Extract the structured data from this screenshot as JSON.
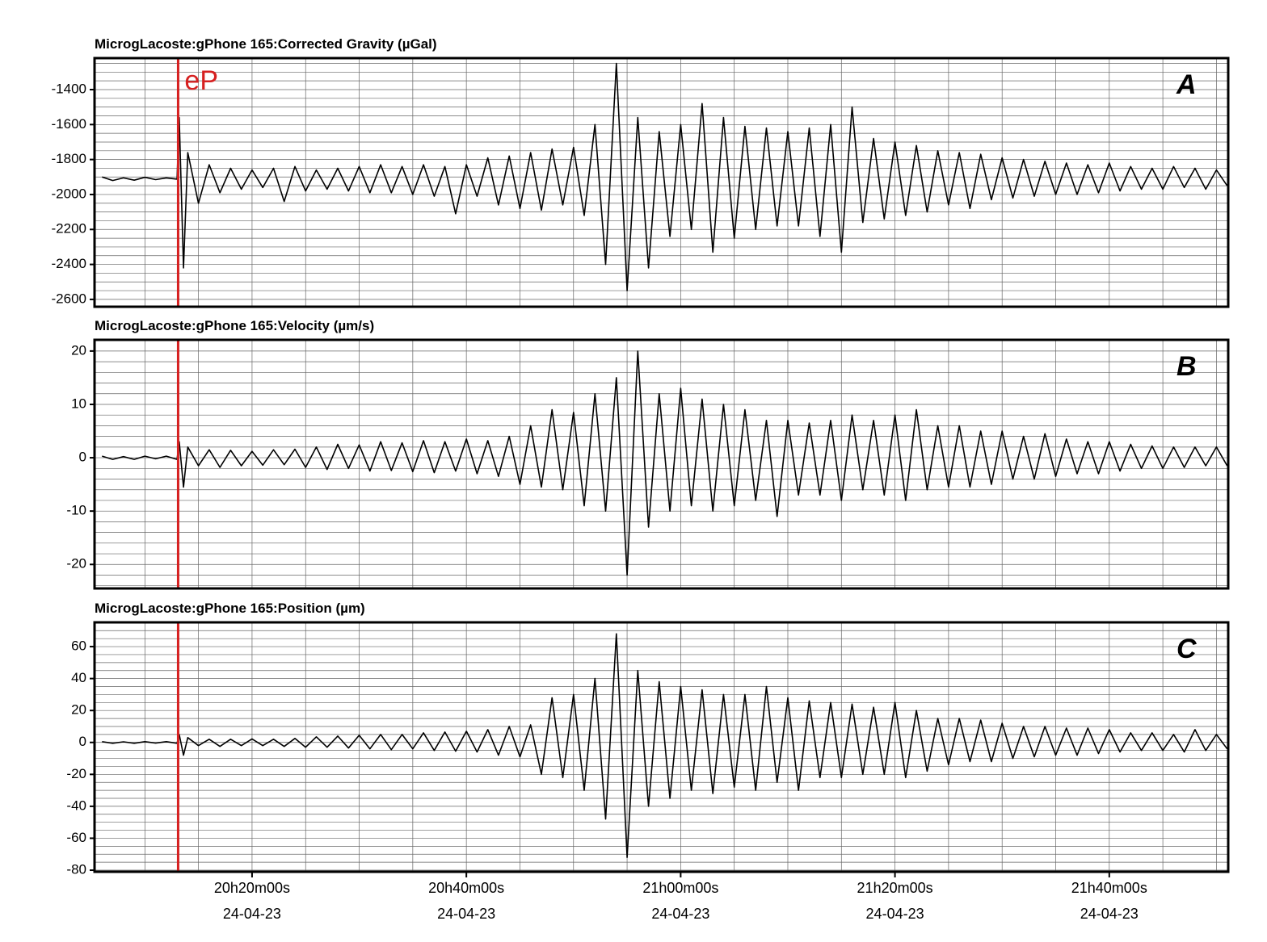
{
  "chart_data": [
    {
      "type": "line",
      "title": "MicrogLacoste:gPhone 165:Corrected Gravity (µGal)",
      "panel_label": "A",
      "color": "#000000",
      "event_line": {
        "x": 1213.1,
        "color": "#d62020",
        "label": "eP"
      },
      "xlim": [
        1205.3,
        1311.1
      ],
      "ylim": [
        -2642,
        -1220
      ],
      "yticks": [
        -2600,
        -2400,
        -2200,
        -2000,
        -1800,
        -1600,
        -1400
      ],
      "ygrid": [
        -2600,
        -2550,
        -2500,
        -2450,
        -2400,
        -2350,
        -2300,
        -2250,
        -2200,
        -2150,
        -2100,
        -2050,
        -2000,
        -1950,
        -1900,
        -1850,
        -1800,
        -1750,
        -1700,
        -1650,
        -1600,
        -1550,
        -1500,
        -1450,
        -1400,
        -1350,
        -1300,
        -1250
      ],
      "xgrid": [
        1210,
        1215,
        1220,
        1225,
        1230,
        1235,
        1240,
        1245,
        1250,
        1255,
        1260,
        1265,
        1270,
        1275,
        1280,
        1285,
        1290,
        1295,
        1300,
        1305,
        1310
      ],
      "x": [
        1206,
        1207,
        1208,
        1209,
        1210,
        1211,
        1212,
        1213,
        1213.2,
        1213.6,
        1214,
        1215,
        1216,
        1217,
        1218,
        1219,
        1220,
        1221,
        1222,
        1223,
        1224,
        1225,
        1226,
        1227,
        1228,
        1229,
        1230,
        1231,
        1232,
        1233,
        1234,
        1235,
        1236,
        1237,
        1238,
        1239,
        1240,
        1241,
        1242,
        1243,
        1244,
        1245,
        1246,
        1247,
        1248,
        1249,
        1250,
        1251,
        1252,
        1253,
        1254,
        1255,
        1256,
        1257,
        1258,
        1259,
        1260,
        1261,
        1262,
        1263,
        1264,
        1265,
        1266,
        1267,
        1268,
        1269,
        1270,
        1271,
        1272,
        1273,
        1274,
        1275,
        1276,
        1277,
        1278,
        1279,
        1280,
        1281,
        1282,
        1283,
        1284,
        1285,
        1286,
        1287,
        1288,
        1289,
        1290,
        1291,
        1292,
        1293,
        1294,
        1295,
        1296,
        1297,
        1298,
        1299,
        1300,
        1301,
        1302,
        1303,
        1304,
        1305,
        1306,
        1307,
        1308,
        1309,
        1310,
        1311
      ],
      "values": [
        -1900,
        -1920,
        -1905,
        -1918,
        -1902,
        -1915,
        -1905,
        -1912,
        -1560,
        -2420,
        -1760,
        -2050,
        -1830,
        -1990,
        -1850,
        -1970,
        -1860,
        -1960,
        -1850,
        -2040,
        -1840,
        -1980,
        -1860,
        -1970,
        -1850,
        -1980,
        -1840,
        -1990,
        -1830,
        -1990,
        -1840,
        -2000,
        -1830,
        -2010,
        -1840,
        -2110,
        -1830,
        -2010,
        -1790,
        -2060,
        -1780,
        -2080,
        -1760,
        -2090,
        -1740,
        -2060,
        -1730,
        -2120,
        -1600,
        -2400,
        -1250,
        -2550,
        -1560,
        -2420,
        -1640,
        -2240,
        -1600,
        -2200,
        -1480,
        -2330,
        -1560,
        -2250,
        -1610,
        -2200,
        -1620,
        -2180,
        -1640,
        -2180,
        -1620,
        -2240,
        -1600,
        -2330,
        -1500,
        -2160,
        -1680,
        -2140,
        -1700,
        -2120,
        -1720,
        -2100,
        -1750,
        -2060,
        -1760,
        -2080,
        -1770,
        -2030,
        -1790,
        -2020,
        -1800,
        -2010,
        -1810,
        -2000,
        -1820,
        -2000,
        -1830,
        -1990,
        -1820,
        -1980,
        -1840,
        -1970,
        -1850,
        -1970,
        -1840,
        -1960,
        -1850,
        -1970,
        -1860,
        -1950
      ]
    },
    {
      "type": "line",
      "title": "MicrogLacoste:gPhone 165:Velocity (µm/s)",
      "panel_label": "B",
      "color": "#000000",
      "event_line": {
        "x": 1213.1,
        "color": "#d62020"
      },
      "xlim": [
        1205.3,
        1311.1
      ],
      "ylim": [
        -24.5,
        22.1
      ],
      "yticks": [
        -20,
        -10,
        0,
        10,
        20
      ],
      "ygrid": [
        -24,
        -22,
        -20,
        -18,
        -16,
        -14,
        -12,
        -10,
        -8,
        -6,
        -4,
        -2,
        0,
        2,
        4,
        6,
        8,
        10,
        12,
        14,
        16,
        18,
        20,
        22
      ],
      "xgrid": [
        1210,
        1215,
        1220,
        1225,
        1230,
        1235,
        1240,
        1245,
        1250,
        1255,
        1260,
        1265,
        1270,
        1275,
        1280,
        1285,
        1290,
        1295,
        1300,
        1305,
        1310
      ],
      "x": [
        1206,
        1207,
        1208,
        1209,
        1210,
        1211,
        1212,
        1213,
        1213.2,
        1213.6,
        1214,
        1215,
        1216,
        1217,
        1218,
        1219,
        1220,
        1221,
        1222,
        1223,
        1224,
        1225,
        1226,
        1227,
        1228,
        1229,
        1230,
        1231,
        1232,
        1233,
        1234,
        1235,
        1236,
        1237,
        1238,
        1239,
        1240,
        1241,
        1242,
        1243,
        1244,
        1245,
        1246,
        1247,
        1248,
        1249,
        1250,
        1251,
        1252,
        1253,
        1254,
        1255,
        1256,
        1257,
        1258,
        1259,
        1260,
        1261,
        1262,
        1263,
        1264,
        1265,
        1266,
        1267,
        1268,
        1269,
        1270,
        1271,
        1272,
        1273,
        1274,
        1275,
        1276,
        1277,
        1278,
        1279,
        1280,
        1281,
        1282,
        1283,
        1284,
        1285,
        1286,
        1287,
        1288,
        1289,
        1290,
        1291,
        1292,
        1293,
        1294,
        1295,
        1296,
        1297,
        1298,
        1299,
        1300,
        1301,
        1302,
        1303,
        1304,
        1305,
        1306,
        1307,
        1308,
        1309,
        1310,
        1311
      ],
      "values": [
        0.3,
        -0.3,
        0.2,
        -0.3,
        0.3,
        -0.2,
        0.3,
        -0.3,
        3,
        -5.5,
        2,
        -1.5,
        1.5,
        -1.8,
        1.4,
        -1.5,
        1.2,
        -1.4,
        1.5,
        -1.3,
        1.6,
        -1.8,
        2,
        -2.2,
        2.5,
        -2,
        2.4,
        -2.5,
        3,
        -2.4,
        2.8,
        -2.6,
        3.2,
        -2.8,
        3,
        -2.5,
        3.5,
        -3,
        3.2,
        -3.5,
        4,
        -5,
        6,
        -5.5,
        9,
        -6,
        8.5,
        -9,
        12,
        -10,
        15,
        -22,
        20,
        -13,
        12,
        -10,
        13,
        -9,
        11,
        -10,
        10,
        -9,
        9,
        -8,
        7,
        -11,
        7,
        -7,
        6.5,
        -7,
        7,
        -8,
        8,
        -6,
        7,
        -7,
        8,
        -8,
        9,
        -6,
        6,
        -5.5,
        6,
        -5.5,
        5,
        -5,
        5,
        -4,
        4,
        -4,
        4.5,
        -3.5,
        3.5,
        -3,
        3,
        -3,
        3,
        -2.5,
        2.5,
        -2,
        2.2,
        -2,
        2,
        -1.8,
        2,
        -1.5,
        2,
        -1.5
      ]
    },
    {
      "type": "line",
      "title": "MicrogLacoste:gPhone 165:Position (µm)",
      "panel_label": "C",
      "color": "#000000",
      "event_line": {
        "x": 1213.1,
        "color": "#d62020"
      },
      "xlim": [
        1205.3,
        1311.1
      ],
      "ylim": [
        -81,
        75.2
      ],
      "yticks": [
        -80,
        -60,
        -40,
        -20,
        0,
        20,
        40,
        60
      ],
      "ygrid": [
        -80,
        -75,
        -70,
        -65,
        -60,
        -55,
        -50,
        -45,
        -40,
        -35,
        -30,
        -25,
        -20,
        -15,
        -10,
        -5,
        0,
        5,
        10,
        15,
        20,
        25,
        30,
        35,
        40,
        45,
        50,
        55,
        60,
        65,
        70,
        75
      ],
      "xgrid": [
        1210,
        1215,
        1220,
        1225,
        1230,
        1235,
        1240,
        1245,
        1250,
        1255,
        1260,
        1265,
        1270,
        1275,
        1280,
        1285,
        1290,
        1295,
        1300,
        1305,
        1310
      ],
      "xticks": [
        {
          "value": 1220,
          "label": "20h20m00s",
          "date": "24-04-23"
        },
        {
          "value": 1240,
          "label": "20h40m00s",
          "date": "24-04-23"
        },
        {
          "value": 1260,
          "label": "21h00m00s",
          "date": "24-04-23"
        },
        {
          "value": 1280,
          "label": "21h20m00s",
          "date": "24-04-23"
        },
        {
          "value": 1300,
          "label": "21h40m00s",
          "date": "24-04-23"
        }
      ],
      "x": [
        1206,
        1207,
        1208,
        1209,
        1210,
        1211,
        1212,
        1213,
        1213.2,
        1213.6,
        1214,
        1215,
        1216,
        1217,
        1218,
        1219,
        1220,
        1221,
        1222,
        1223,
        1224,
        1225,
        1226,
        1227,
        1228,
        1229,
        1230,
        1231,
        1232,
        1233,
        1234,
        1235,
        1236,
        1237,
        1238,
        1239,
        1240,
        1241,
        1242,
        1243,
        1244,
        1245,
        1246,
        1247,
        1248,
        1249,
        1250,
        1251,
        1252,
        1253,
        1254,
        1255,
        1256,
        1257,
        1258,
        1259,
        1260,
        1261,
        1262,
        1263,
        1264,
        1265,
        1266,
        1267,
        1268,
        1269,
        1270,
        1271,
        1272,
        1273,
        1274,
        1275,
        1276,
        1277,
        1278,
        1279,
        1280,
        1281,
        1282,
        1283,
        1284,
        1285,
        1286,
        1287,
        1288,
        1289,
        1290,
        1291,
        1292,
        1293,
        1294,
        1295,
        1296,
        1297,
        1298,
        1299,
        1300,
        1301,
        1302,
        1303,
        1304,
        1305,
        1306,
        1307,
        1308,
        1309,
        1310,
        1311
      ],
      "values": [
        0.5,
        -0.5,
        0.4,
        -0.5,
        0.5,
        -0.4,
        0.5,
        -0.5,
        5,
        -8,
        3,
        -2,
        2,
        -2.5,
        2,
        -2,
        2.2,
        -2,
        2,
        -2.5,
        2.5,
        -3,
        3.5,
        -3,
        4,
        -3.5,
        4.5,
        -4,
        5,
        -4.5,
        5,
        -4,
        6,
        -5,
        6.5,
        -5.5,
        7,
        -6,
        8,
        -8,
        10,
        -9,
        11,
        -20,
        28,
        -22,
        30,
        -30,
        40,
        -48,
        68,
        -72,
        45,
        -40,
        38,
        -35,
        35,
        -30,
        33,
        -32,
        30,
        -28,
        30,
        -30,
        35,
        -25,
        28,
        -30,
        26,
        -22,
        25,
        -22,
        24,
        -20,
        22,
        -20,
        25,
        -22,
        20,
        -18,
        15,
        -14,
        15,
        -12,
        14,
        -12,
        12,
        -10,
        10,
        -9,
        10,
        -8,
        9,
        -8,
        9,
        -7,
        8,
        -6,
        6,
        -5,
        6,
        -5,
        5,
        -6,
        8,
        -5,
        5,
        -4
      ]
    }
  ]
}
